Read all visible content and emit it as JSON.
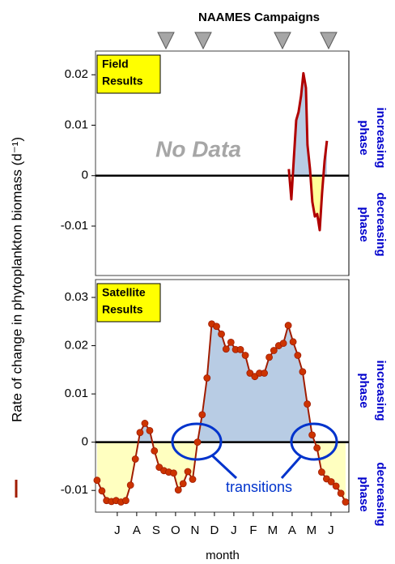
{
  "title": "NAAMES Campaigns",
  "y_label": "Rate of change in phytoplankton biomass (d⁻¹)",
  "chart_data": [
    {
      "type": "line",
      "label": [
        "Field",
        "Results"
      ],
      "annotation": "No Data",
      "increasing_label": [
        "increasing",
        "phase"
      ],
      "decreasing_label": [
        "decreasing",
        "phase"
      ],
      "color": "#b00000",
      "fill_positive": "#b8cce4",
      "fill_negative": "#ffff99",
      "markers": false,
      "xlim": [
        -1.12,
        11.92
      ],
      "ylim": [
        -0.0198,
        0.0247
      ],
      "yticks": [
        0.02,
        0.01,
        0,
        -0.01
      ],
      "x": [
        8.83,
        8.96,
        9.08,
        9.21,
        9.33,
        9.46,
        9.58,
        9.71,
        9.79,
        9.92,
        10.04,
        10.17,
        10.29,
        10.42,
        10.54,
        10.67,
        10.79
      ],
      "values": [
        0.0013,
        -0.0047,
        0.0029,
        0.011,
        0.0126,
        0.0158,
        0.0203,
        0.0174,
        0.0061,
        0.0013,
        -0.0052,
        -0.0081,
        -0.0076,
        -0.0108,
        -0.0035,
        0.0029,
        0.0069
      ]
    },
    {
      "type": "line",
      "label": [
        "Satellite",
        "Results"
      ],
      "annotation": "transitions",
      "increasing_label": [
        "increasing",
        "phase"
      ],
      "decreasing_label": [
        "decreasing",
        "phase"
      ],
      "x_label": "month",
      "color": "#a01c00",
      "marker_color": "#cc3300",
      "fill_positive": "#b8cce4",
      "fill_negative": "#ffffc0",
      "markers": true,
      "xlim": [
        -1.12,
        11.92
      ],
      "ylim": [
        -0.0145,
        0.0337
      ],
      "yticks": [
        0.03,
        0.02,
        0.01,
        0,
        -0.01
      ],
      "xticks": [
        {
          "value": 0,
          "label": "J"
        },
        {
          "value": 1,
          "label": "A"
        },
        {
          "value": 2,
          "label": "S"
        },
        {
          "value": 3,
          "label": "O"
        },
        {
          "value": 4,
          "label": "N"
        },
        {
          "value": 5,
          "label": "D"
        },
        {
          "value": 6,
          "label": "J"
        },
        {
          "value": 7,
          "label": "F"
        },
        {
          "value": 8,
          "label": "M"
        },
        {
          "value": 9,
          "label": "A"
        },
        {
          "value": 10,
          "label": "M"
        },
        {
          "value": 11,
          "label": "J"
        }
      ],
      "x": [
        -1.04,
        -0.79,
        -0.55,
        -0.3,
        -0.06,
        0.19,
        0.44,
        0.68,
        0.93,
        1.17,
        1.42,
        1.67,
        1.91,
        2.16,
        2.4,
        2.65,
        2.9,
        3.14,
        3.39,
        3.63,
        3.88,
        4.13,
        4.37,
        4.62,
        4.86,
        5.11,
        5.36,
        5.6,
        5.85,
        6.09,
        6.34,
        6.59,
        6.83,
        7.08,
        7.32,
        7.57,
        7.82,
        8.06,
        8.31,
        8.55,
        8.8,
        9.05,
        9.29,
        9.54,
        9.78,
        10.03,
        10.28,
        10.52,
        10.77,
        11.01,
        11.26,
        11.51,
        11.75
      ],
      "values": [
        -0.0079,
        -0.0101,
        -0.0121,
        -0.0123,
        -0.0121,
        -0.0124,
        -0.0121,
        -0.0089,
        -0.0035,
        0.002,
        0.0039,
        0.0024,
        -0.0018,
        -0.0052,
        -0.0059,
        -0.0062,
        -0.0064,
        -0.0099,
        -0.0086,
        -0.0061,
        -0.0077,
        0.0,
        0.0057,
        0.0133,
        0.0245,
        0.024,
        0.0224,
        0.0193,
        0.0207,
        0.0192,
        0.0192,
        0.018,
        0.0143,
        0.0136,
        0.0143,
        0.0143,
        0.0176,
        0.019,
        0.02,
        0.0205,
        0.0242,
        0.0208,
        0.018,
        0.0146,
        0.0079,
        0.0015,
        -0.0012,
        -0.0062,
        -0.0076,
        -0.0082,
        -0.0091,
        -0.0106,
        -0.0124
      ]
    }
  ]
}
